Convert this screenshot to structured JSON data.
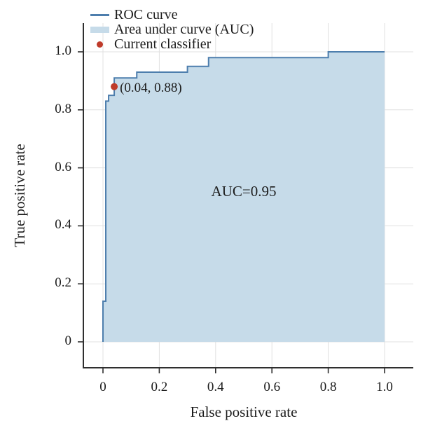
{
  "chart_data": {
    "type": "line",
    "subtype": "roc-curve-step-plot",
    "title": "",
    "xlabel": "False positive rate",
    "ylabel": "True positive rate",
    "xlim": [
      0,
      1
    ],
    "ylim": [
      0,
      1
    ],
    "grid": true,
    "legend_position": "upper-left",
    "xticks": {
      "values": [
        0,
        0.2,
        0.4,
        0.6,
        0.8,
        1.0
      ],
      "labels": [
        "0",
        "0.2",
        "0.4",
        "0.6",
        "0.8",
        "1.0"
      ]
    },
    "yticks": {
      "values": [
        0,
        0.2,
        0.4,
        0.6,
        0.8,
        1.0
      ],
      "labels": [
        "0",
        "0.2",
        "0.4",
        "0.6",
        "0.8",
        "1.0"
      ]
    },
    "series": [
      {
        "name": "ROC curve",
        "type": "step-line",
        "color": "#4d7ead",
        "points": [
          [
            0,
            0
          ],
          [
            0,
            0.14
          ],
          [
            0.01,
            0.14
          ],
          [
            0.01,
            0.83
          ],
          [
            0.02,
            0.83
          ],
          [
            0.02,
            0.85
          ],
          [
            0.04,
            0.85
          ],
          [
            0.04,
            0.91
          ],
          [
            0.12,
            0.91
          ],
          [
            0.12,
            0.93
          ],
          [
            0.3,
            0.93
          ],
          [
            0.3,
            0.95
          ],
          [
            0.375,
            0.95
          ],
          [
            0.375,
            0.98
          ],
          [
            0.8,
            0.98
          ],
          [
            0.8,
            1.0
          ],
          [
            1.0,
            1.0
          ]
        ]
      },
      {
        "name": "Area under curve (AUC)",
        "type": "area-fill",
        "color": "#c6dbe9",
        "auc_value": 0.95
      },
      {
        "name": "Current classifier",
        "type": "point",
        "color": "#bf3b2a",
        "point": [
          0.04,
          0.88
        ]
      }
    ],
    "legend": {
      "entries": [
        {
          "label": "ROC curve",
          "swatch": "line"
        },
        {
          "label": "Area under curve (AUC)",
          "swatch": "patch"
        },
        {
          "label": "Current classifier",
          "swatch": "dot"
        }
      ]
    },
    "annotations": [
      {
        "text": "(0.04, 0.88)",
        "anchor_point": [
          0.04,
          0.88
        ]
      },
      {
        "text": "AUC=0.95",
        "position": [
          0.5,
          0.52
        ]
      }
    ]
  },
  "style_colors": {
    "curve": "#4d7ead",
    "fill": "#c6dbe9",
    "point": "#bf3b2a",
    "grid": "#e0e0e0",
    "spine": "#2f2f2f",
    "text": "#1c1c1c"
  }
}
